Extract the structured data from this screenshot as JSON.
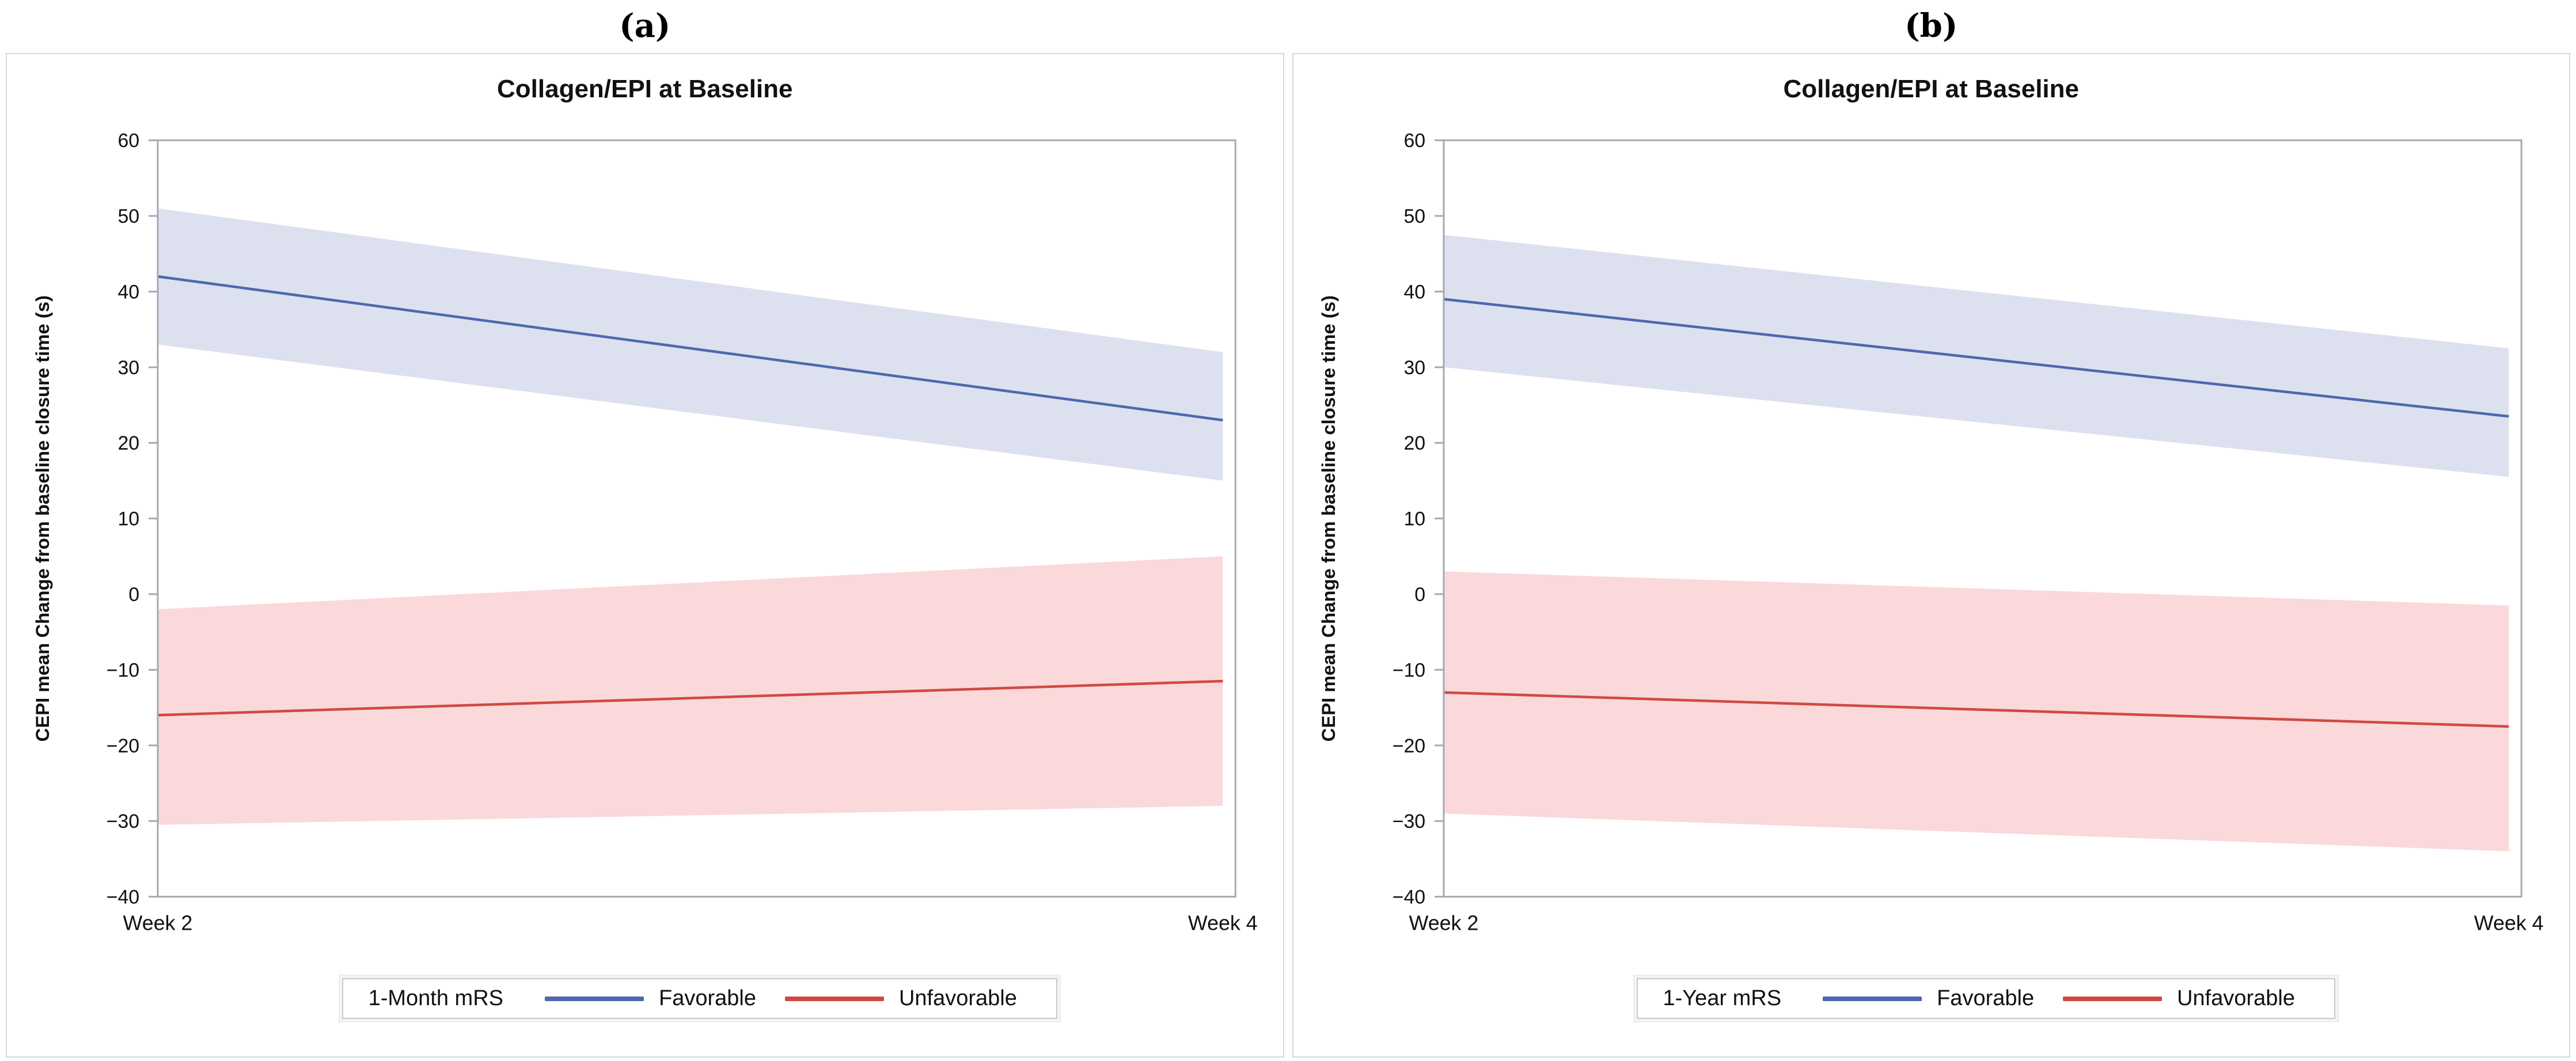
{
  "page": {
    "background": "#ffffff"
  },
  "chart_data": [
    {
      "type": "line",
      "panel_caption": "(a)",
      "title": "Collagen/EPI at Baseline",
      "xlabel": "",
      "ylabel": "CEPI mean Change from baseline closure time (s)",
      "x": [
        "Week 2",
        "Week 4"
      ],
      "ylim": [
        -40,
        60
      ],
      "yticks": [
        60,
        50,
        40,
        30,
        20,
        10,
        0,
        -10,
        -20,
        -30,
        -40
      ],
      "grid": false,
      "legend_position": "bottom-center",
      "legend_group": "1-Month mRS",
      "axis_color": "#a3aab0",
      "series": [
        {
          "name": "Favorable",
          "color": "#4d68ae",
          "band_color": "#dde1ef",
          "mean": [
            42,
            23
          ],
          "ci_upper": [
            51,
            32
          ],
          "ci_lower": [
            33,
            15
          ]
        },
        {
          "name": "Unfavorable",
          "color": "#cf4a43",
          "band_color": "#fbd8d9",
          "mean": [
            -16,
            -11.5
          ],
          "ci_upper": [
            -2,
            5
          ],
          "ci_lower": [
            -30.5,
            -28
          ]
        }
      ]
    },
    {
      "type": "line",
      "panel_caption": "(b)",
      "title": "Collagen/EPI at Baseline",
      "xlabel": "",
      "ylabel": "CEPI mean Change from baseline closure time (s)",
      "x": [
        "Week 2",
        "Week 4"
      ],
      "ylim": [
        -40,
        60
      ],
      "yticks": [
        60,
        50,
        40,
        30,
        20,
        10,
        0,
        -10,
        -20,
        -30,
        -40
      ],
      "grid": false,
      "legend_position": "bottom-center",
      "legend_group": "1-Year mRS",
      "axis_color": "#a3aab0",
      "series": [
        {
          "name": "Favorable",
          "color": "#4d68ae",
          "band_color": "#dde1ef",
          "mean": [
            39,
            23.5
          ],
          "ci_upper": [
            47.5,
            32.5
          ],
          "ci_lower": [
            30,
            15.5
          ]
        },
        {
          "name": "Unfavorable",
          "color": "#cf4a43",
          "band_color": "#fbd8d9",
          "mean": [
            -13,
            -17.5
          ],
          "ci_upper": [
            3,
            -1.5
          ],
          "ci_lower": [
            -29,
            -34
          ]
        }
      ]
    }
  ]
}
